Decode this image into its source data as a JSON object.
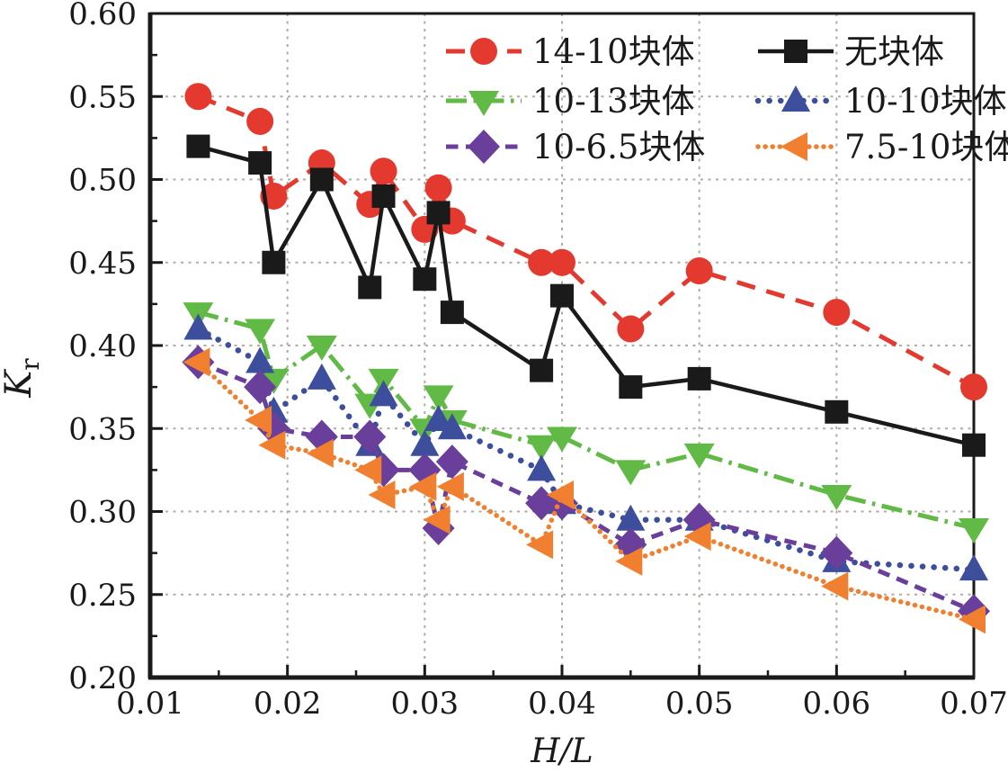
{
  "chart_data": {
    "type": "line",
    "title": "",
    "xlabel": "H/L",
    "ylabel_main": "K",
    "ylabel_sub": "r",
    "xlim": [
      0.01,
      0.07
    ],
    "ylim": [
      0.2,
      0.6
    ],
    "xticks": [
      0.01,
      0.02,
      0.03,
      0.04,
      0.05,
      0.06,
      0.07
    ],
    "yticks": [
      0.2,
      0.25,
      0.3,
      0.35,
      0.4,
      0.45,
      0.5,
      0.55,
      0.6
    ],
    "x_minor_step": 0.005,
    "y_minor_step": 0.025,
    "grid": true,
    "grid_color": "#b3aaa5",
    "axis_color": "#1a1a1a",
    "legend_position": "top-inside",
    "legend_columns": [
      [
        0,
        2,
        4
      ],
      [
        1,
        3,
        5
      ]
    ],
    "x": [
      0.0135,
      0.018,
      0.019,
      0.0225,
      0.026,
      0.027,
      0.03,
      0.031,
      0.032,
      0.0385,
      0.04,
      0.045,
      0.05,
      0.06,
      0.07
    ],
    "series": [
      {
        "key": "14-10-blocks",
        "name": "14-10块体",
        "color": "#e4392f",
        "marker": "circle",
        "linestyle": "dashed",
        "values": [
          0.55,
          0.535,
          0.49,
          0.51,
          0.485,
          0.505,
          0.47,
          0.495,
          0.475,
          0.45,
          0.45,
          0.41,
          0.445,
          0.42,
          0.375
        ]
      },
      {
        "key": "no-blocks",
        "name": "无块体",
        "color": "#1a1a1a",
        "marker": "square",
        "linestyle": "solid",
        "values": [
          0.52,
          0.51,
          0.45,
          0.5,
          0.435,
          0.49,
          0.44,
          0.48,
          0.42,
          0.385,
          0.43,
          0.375,
          0.38,
          0.36,
          0.34
        ]
      },
      {
        "key": "10-13-blocks",
        "name": "10-13块体",
        "color": "#61b946",
        "marker": "triangle-down",
        "linestyle": "dashdot",
        "values": [
          0.42,
          0.41,
          0.38,
          0.4,
          0.365,
          0.38,
          0.35,
          0.37,
          0.355,
          0.34,
          0.345,
          0.325,
          0.335,
          0.31,
          0.29
        ]
      },
      {
        "key": "10-10-blocks",
        "name": "10-10块体",
        "color": "#3d4e9d",
        "marker": "triangle-up",
        "linestyle": "dotted",
        "values": [
          0.41,
          0.39,
          0.36,
          0.38,
          0.34,
          0.37,
          0.34,
          0.355,
          0.35,
          0.325,
          0.305,
          0.295,
          0.295,
          0.27,
          0.265
        ]
      },
      {
        "key": "10-6-5-blocks",
        "name": "10-6.5块体",
        "color": "#6a3f9c",
        "marker": "diamond",
        "linestyle": "dashed-short",
        "values": [
          0.39,
          0.375,
          0.35,
          0.345,
          0.345,
          0.325,
          0.325,
          0.29,
          0.33,
          0.305,
          0.305,
          0.28,
          0.295,
          0.275,
          0.24
        ]
      },
      {
        "key": "7-5-10-blocks",
        "name": "7.5-10块体",
        "color": "#f08030",
        "marker": "triangle-left",
        "linestyle": "dotted-dense",
        "values": [
          0.39,
          0.355,
          0.34,
          0.335,
          0.325,
          0.31,
          0.315,
          0.295,
          0.315,
          0.28,
          0.31,
          0.27,
          0.285,
          0.255,
          0.235
        ]
      }
    ]
  }
}
